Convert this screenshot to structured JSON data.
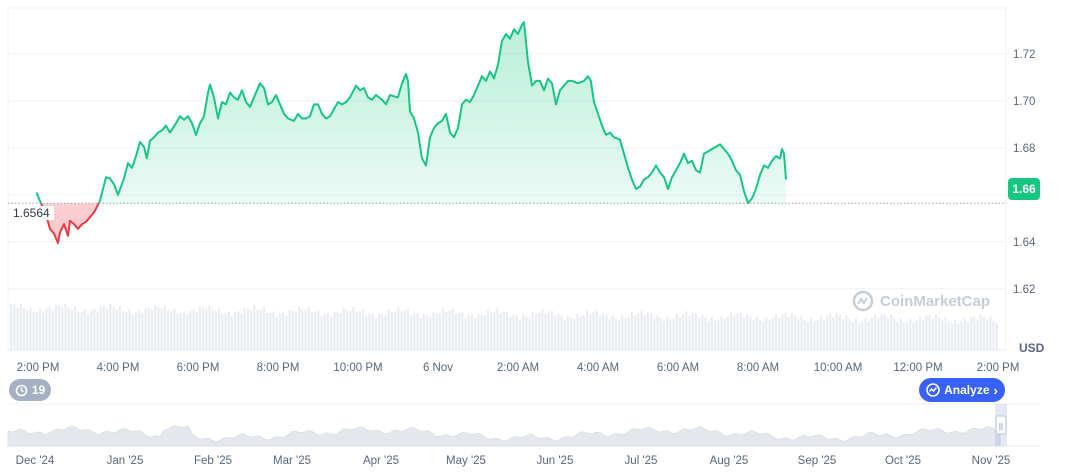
{
  "chart_data": {
    "type": "area",
    "currency": "USD",
    "current_price": "1.66",
    "baseline_label": "1.6564",
    "baseline_value": 1.6564,
    "ylim": [
      1.605,
      1.737
    ],
    "yticks": [
      {
        "value": 1.62,
        "label": "1.62"
      },
      {
        "value": 1.64,
        "label": "1.64"
      },
      {
        "value": 1.66,
        "label": "1.66"
      },
      {
        "value": 1.68,
        "label": "1.68"
      },
      {
        "value": 1.7,
        "label": "1.70"
      },
      {
        "value": 1.72,
        "label": "1.72"
      }
    ],
    "xticks": [
      {
        "t": 0,
        "label": "2:00 PM"
      },
      {
        "t": 2,
        "label": "4:00 PM"
      },
      {
        "t": 4,
        "label": "6:00 PM"
      },
      {
        "t": 6,
        "label": "8:00 PM"
      },
      {
        "t": 8,
        "label": "10:00 PM"
      },
      {
        "t": 10,
        "label": "6 Nov"
      },
      {
        "t": 12,
        "label": "2:00 AM"
      },
      {
        "t": 14,
        "label": "4:00 AM"
      },
      {
        "t": 16,
        "label": "6:00 AM"
      },
      {
        "t": 18,
        "label": "8:00 AM"
      },
      {
        "t": 20,
        "label": "10:00 AM"
      },
      {
        "t": 22,
        "label": "12:00 PM"
      },
      {
        "t": 24,
        "label": "2:00 PM"
      }
    ],
    "series": [
      {
        "points": [
          [
            -0.04,
            1.661
          ],
          [
            0.2,
            1.6515
          ],
          [
            0.3,
            1.6455
          ],
          [
            0.4,
            1.6435
          ],
          [
            0.5,
            1.6395
          ],
          [
            0.55,
            1.644
          ],
          [
            0.65,
            1.6475
          ],
          [
            0.75,
            1.6425
          ],
          [
            0.8,
            1.649
          ],
          [
            0.9,
            1.6475
          ],
          [
            1.0,
            1.6455
          ],
          [
            1.1,
            1.6475
          ],
          [
            1.2,
            1.6485
          ],
          [
            1.3,
            1.6505
          ],
          [
            1.4,
            1.6525
          ],
          [
            1.55,
            1.6575
          ],
          [
            1.7,
            1.6675
          ],
          [
            1.8,
            1.667
          ],
          [
            1.9,
            1.6645
          ],
          [
            2.0,
            1.66
          ],
          [
            2.15,
            1.667
          ],
          [
            2.25,
            1.6735
          ],
          [
            2.35,
            1.6715
          ],
          [
            2.45,
            1.6765
          ],
          [
            2.55,
            1.6825
          ],
          [
            2.65,
            1.6805
          ],
          [
            2.72,
            1.6755
          ],
          [
            2.8,
            1.683
          ],
          [
            2.9,
            1.6845
          ],
          [
            3.0,
            1.6865
          ],
          [
            3.1,
            1.6875
          ],
          [
            3.2,
            1.6895
          ],
          [
            3.3,
            1.6865
          ],
          [
            3.45,
            1.6905
          ],
          [
            3.55,
            1.6935
          ],
          [
            3.65,
            1.692
          ],
          [
            3.75,
            1.6935
          ],
          [
            3.85,
            1.6905
          ],
          [
            3.95,
            1.6855
          ],
          [
            4.05,
            1.6905
          ],
          [
            4.15,
            1.6935
          ],
          [
            4.25,
            1.7035
          ],
          [
            4.3,
            1.707
          ],
          [
            4.4,
            1.7015
          ],
          [
            4.5,
            1.6925
          ],
          [
            4.6,
            1.6995
          ],
          [
            4.7,
            1.6985
          ],
          [
            4.8,
            1.7035
          ],
          [
            4.9,
            1.7015
          ],
          [
            5.0,
            1.7005
          ],
          [
            5.1,
            1.7045
          ],
          [
            5.2,
            1.6995
          ],
          [
            5.3,
            1.6975
          ],
          [
            5.45,
            1.7035
          ],
          [
            5.55,
            1.7075
          ],
          [
            5.65,
            1.7055
          ],
          [
            5.75,
            1.6985
          ],
          [
            5.85,
            1.6995
          ],
          [
            5.95,
            1.7025
          ],
          [
            6.05,
            1.6985
          ],
          [
            6.15,
            1.6945
          ],
          [
            6.25,
            1.6925
          ],
          [
            6.4,
            1.6915
          ],
          [
            6.5,
            1.6945
          ],
          [
            6.6,
            1.6925
          ],
          [
            6.7,
            1.6925
          ],
          [
            6.8,
            1.6935
          ],
          [
            6.9,
            1.6985
          ],
          [
            7.0,
            1.6985
          ],
          [
            7.1,
            1.6945
          ],
          [
            7.2,
            1.6925
          ],
          [
            7.3,
            1.6935
          ],
          [
            7.4,
            1.6965
          ],
          [
            7.5,
            1.6995
          ],
          [
            7.6,
            1.6985
          ],
          [
            7.7,
            1.6995
          ],
          [
            7.8,
            1.7015
          ],
          [
            7.95,
            1.7065
          ],
          [
            8.05,
            1.7045
          ],
          [
            8.15,
            1.7055
          ],
          [
            8.25,
            1.7015
          ],
          [
            8.35,
            1.7005
          ],
          [
            8.45,
            1.7025
          ],
          [
            8.6,
            1.7005
          ],
          [
            8.7,
            1.6985
          ],
          [
            8.8,
            1.7025
          ],
          [
            9.0,
            1.7015
          ],
          [
            9.1,
            1.7075
          ],
          [
            9.2,
            1.7115
          ],
          [
            9.25,
            1.7085
          ],
          [
            9.3,
            1.6955
          ],
          [
            9.4,
            1.6925
          ],
          [
            9.5,
            1.6865
          ],
          [
            9.6,
            1.6755
          ],
          [
            9.7,
            1.6725
          ],
          [
            9.8,
            1.6845
          ],
          [
            9.9,
            1.6885
          ],
          [
            10.0,
            1.6905
          ],
          [
            10.1,
            1.6915
          ],
          [
            10.2,
            1.6945
          ],
          [
            10.3,
            1.6865
          ],
          [
            10.4,
            1.6845
          ],
          [
            10.5,
            1.6885
          ],
          [
            10.6,
            1.6985
          ],
          [
            10.7,
            1.7005
          ],
          [
            10.8,
            1.6995
          ],
          [
            10.9,
            1.7025
          ],
          [
            11.0,
            1.7065
          ],
          [
            11.1,
            1.7105
          ],
          [
            11.2,
            1.7085
          ],
          [
            11.3,
            1.7125
          ],
          [
            11.4,
            1.7095
          ],
          [
            11.5,
            1.7155
          ],
          [
            11.6,
            1.7255
          ],
          [
            11.7,
            1.7285
          ],
          [
            11.8,
            1.7265
          ],
          [
            11.9,
            1.7305
          ],
          [
            12.0,
            1.7285
          ],
          [
            12.1,
            1.7325
          ],
          [
            12.15,
            1.7335
          ],
          [
            12.25,
            1.7165
          ],
          [
            12.35,
            1.7065
          ],
          [
            12.45,
            1.7085
          ],
          [
            12.55,
            1.7085
          ],
          [
            12.65,
            1.7045
          ],
          [
            12.75,
            1.7095
          ],
          [
            12.85,
            1.7075
          ],
          [
            12.95,
            1.6985
          ],
          [
            13.05,
            1.7045
          ],
          [
            13.15,
            1.7065
          ],
          [
            13.25,
            1.7085
          ],
          [
            13.35,
            1.7085
          ],
          [
            13.5,
            1.7075
          ],
          [
            13.65,
            1.7085
          ],
          [
            13.75,
            1.7105
          ],
          [
            13.82,
            1.7085
          ],
          [
            13.9,
            1.6995
          ],
          [
            14.0,
            1.6945
          ],
          [
            14.1,
            1.6895
          ],
          [
            14.2,
            1.6855
          ],
          [
            14.3,
            1.6865
          ],
          [
            14.4,
            1.6845
          ],
          [
            14.55,
            1.6835
          ],
          [
            14.65,
            1.6775
          ],
          [
            14.75,
            1.6715
          ],
          [
            14.85,
            1.6665
          ],
          [
            14.95,
            1.6625
          ],
          [
            15.05,
            1.6635
          ],
          [
            15.15,
            1.6665
          ],
          [
            15.25,
            1.6675
          ],
          [
            15.35,
            1.6695
          ],
          [
            15.45,
            1.6725
          ],
          [
            15.55,
            1.6695
          ],
          [
            15.65,
            1.6675
          ],
          [
            15.75,
            1.6625
          ],
          [
            15.85,
            1.6675
          ],
          [
            15.95,
            1.6705
          ],
          [
            16.05,
            1.6735
          ],
          [
            16.15,
            1.6775
          ],
          [
            16.25,
            1.6735
          ],
          [
            16.35,
            1.6745
          ],
          [
            16.45,
            1.6705
          ],
          [
            16.55,
            1.6695
          ],
          [
            16.65,
            1.6775
          ],
          [
            16.75,
            1.6785
          ],
          [
            16.85,
            1.6795
          ],
          [
            16.95,
            1.6805
          ],
          [
            17.05,
            1.6815
          ],
          [
            17.15,
            1.6795
          ],
          [
            17.25,
            1.6775
          ],
          [
            17.35,
            1.6745
          ],
          [
            17.45,
            1.6705
          ],
          [
            17.55,
            1.6685
          ],
          [
            17.65,
            1.6615
          ],
          [
            17.75,
            1.6565
          ],
          [
            17.85,
            1.6585
          ],
          [
            17.95,
            1.6625
          ],
          [
            18.05,
            1.6685
          ],
          [
            18.15,
            1.6725
          ],
          [
            18.25,
            1.6715
          ],
          [
            18.35,
            1.6745
          ],
          [
            18.45,
            1.6765
          ],
          [
            18.55,
            1.6755
          ],
          [
            18.6,
            1.6795
          ],
          [
            18.65,
            1.6775
          ],
          [
            18.7,
            1.6665
          ]
        ]
      }
    ],
    "navigator": {
      "labels": [
        "Dec '24",
        "Jan '25",
        "Feb '25",
        "Mar '25",
        "Apr '25",
        "May '25",
        "Jun '25",
        "Jul '25",
        "Aug '25",
        "Sep '25",
        "Oct '25",
        "Nov '25"
      ]
    }
  },
  "ui": {
    "watermark": "CoinMarketCap",
    "history_count": "19",
    "analyze_label": "Analyze",
    "handle_glyph": "||"
  },
  "colors": {
    "up": "#16c784",
    "down": "#ea3943",
    "analyze": "#3861fb",
    "badge": "#a6b0c3"
  }
}
